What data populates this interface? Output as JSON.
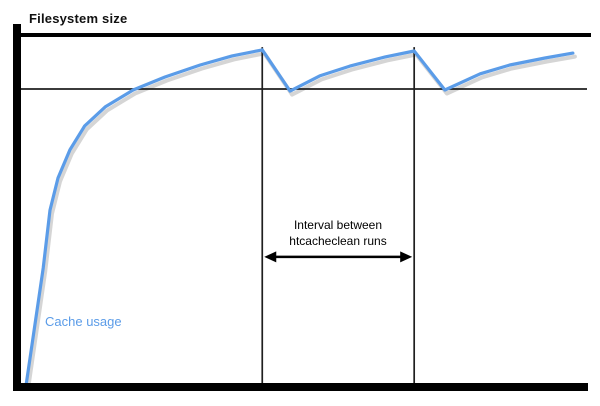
{
  "page": {
    "background": "#ffffff"
  },
  "labels": {
    "filesystem_size": "Filesystem size",
    "cache_usage": "Cache usage",
    "interval_line1": "Interval between",
    "interval_line2": "htcacheclean runs"
  },
  "colors": {
    "curve": "#5b9ce8",
    "curve_shadow": "#b3b3b3",
    "axis": "#000000",
    "guide_line": "#1f1f1f",
    "annotation": "#000000",
    "label_text": "#111111",
    "cache_label_text": "#5b9ce8"
  },
  "chart_data": {
    "type": "line",
    "title": "",
    "xlabel": "",
    "ylabel": "Filesystem size",
    "x_unit": "time",
    "y_unit": "percent of filesystem size",
    "xlim": [
      0,
      100
    ],
    "ylim": [
      0,
      100
    ],
    "grid": false,
    "legend_position": "inline-label lower-left",
    "series": [
      {
        "name": "Cache usage",
        "color": "#5b9ce8",
        "points": [
          [
            0.9,
            0
          ],
          [
            3.9,
            33.2
          ],
          [
            5.1,
            49.7
          ],
          [
            6.5,
            58.8
          ],
          [
            8.6,
            66.8
          ],
          [
            11.2,
            73.6
          ],
          [
            14.8,
            79.0
          ],
          [
            19.7,
            83.8
          ],
          [
            25.3,
            87.5
          ],
          [
            31.5,
            90.9
          ],
          [
            37.1,
            93.5
          ],
          [
            42.4,
            95.2
          ],
          [
            47.3,
            83.5
          ],
          [
            52.5,
            87.8
          ],
          [
            57.8,
            90.6
          ],
          [
            64.0,
            93.2
          ],
          [
            69.1,
            94.9
          ],
          [
            74.5,
            83.8
          ],
          [
            80.7,
            88.4
          ],
          [
            85.9,
            90.9
          ],
          [
            92.1,
            92.9
          ],
          [
            97.0,
            94.3
          ]
        ]
      }
    ],
    "reference_lines": [
      {
        "id": "filesystem-size-level",
        "y": 100,
        "label": "Filesystem size",
        "style": "thick"
      },
      {
        "id": "cache-limit-level",
        "y": 84.1,
        "label": "",
        "style": "thin"
      }
    ],
    "event_lines": {
      "x": [
        42.4,
        69.1
      ],
      "top_y": 96,
      "bottom_y": 0,
      "meaning": "htcacheclean runs"
    },
    "annotations": [
      {
        "id": "interval-arrow",
        "type": "double-headed-arrow",
        "x1": 42.4,
        "x2": 69.1,
        "y": 36.4,
        "label": "Interval between htcacheclean runs"
      }
    ]
  }
}
